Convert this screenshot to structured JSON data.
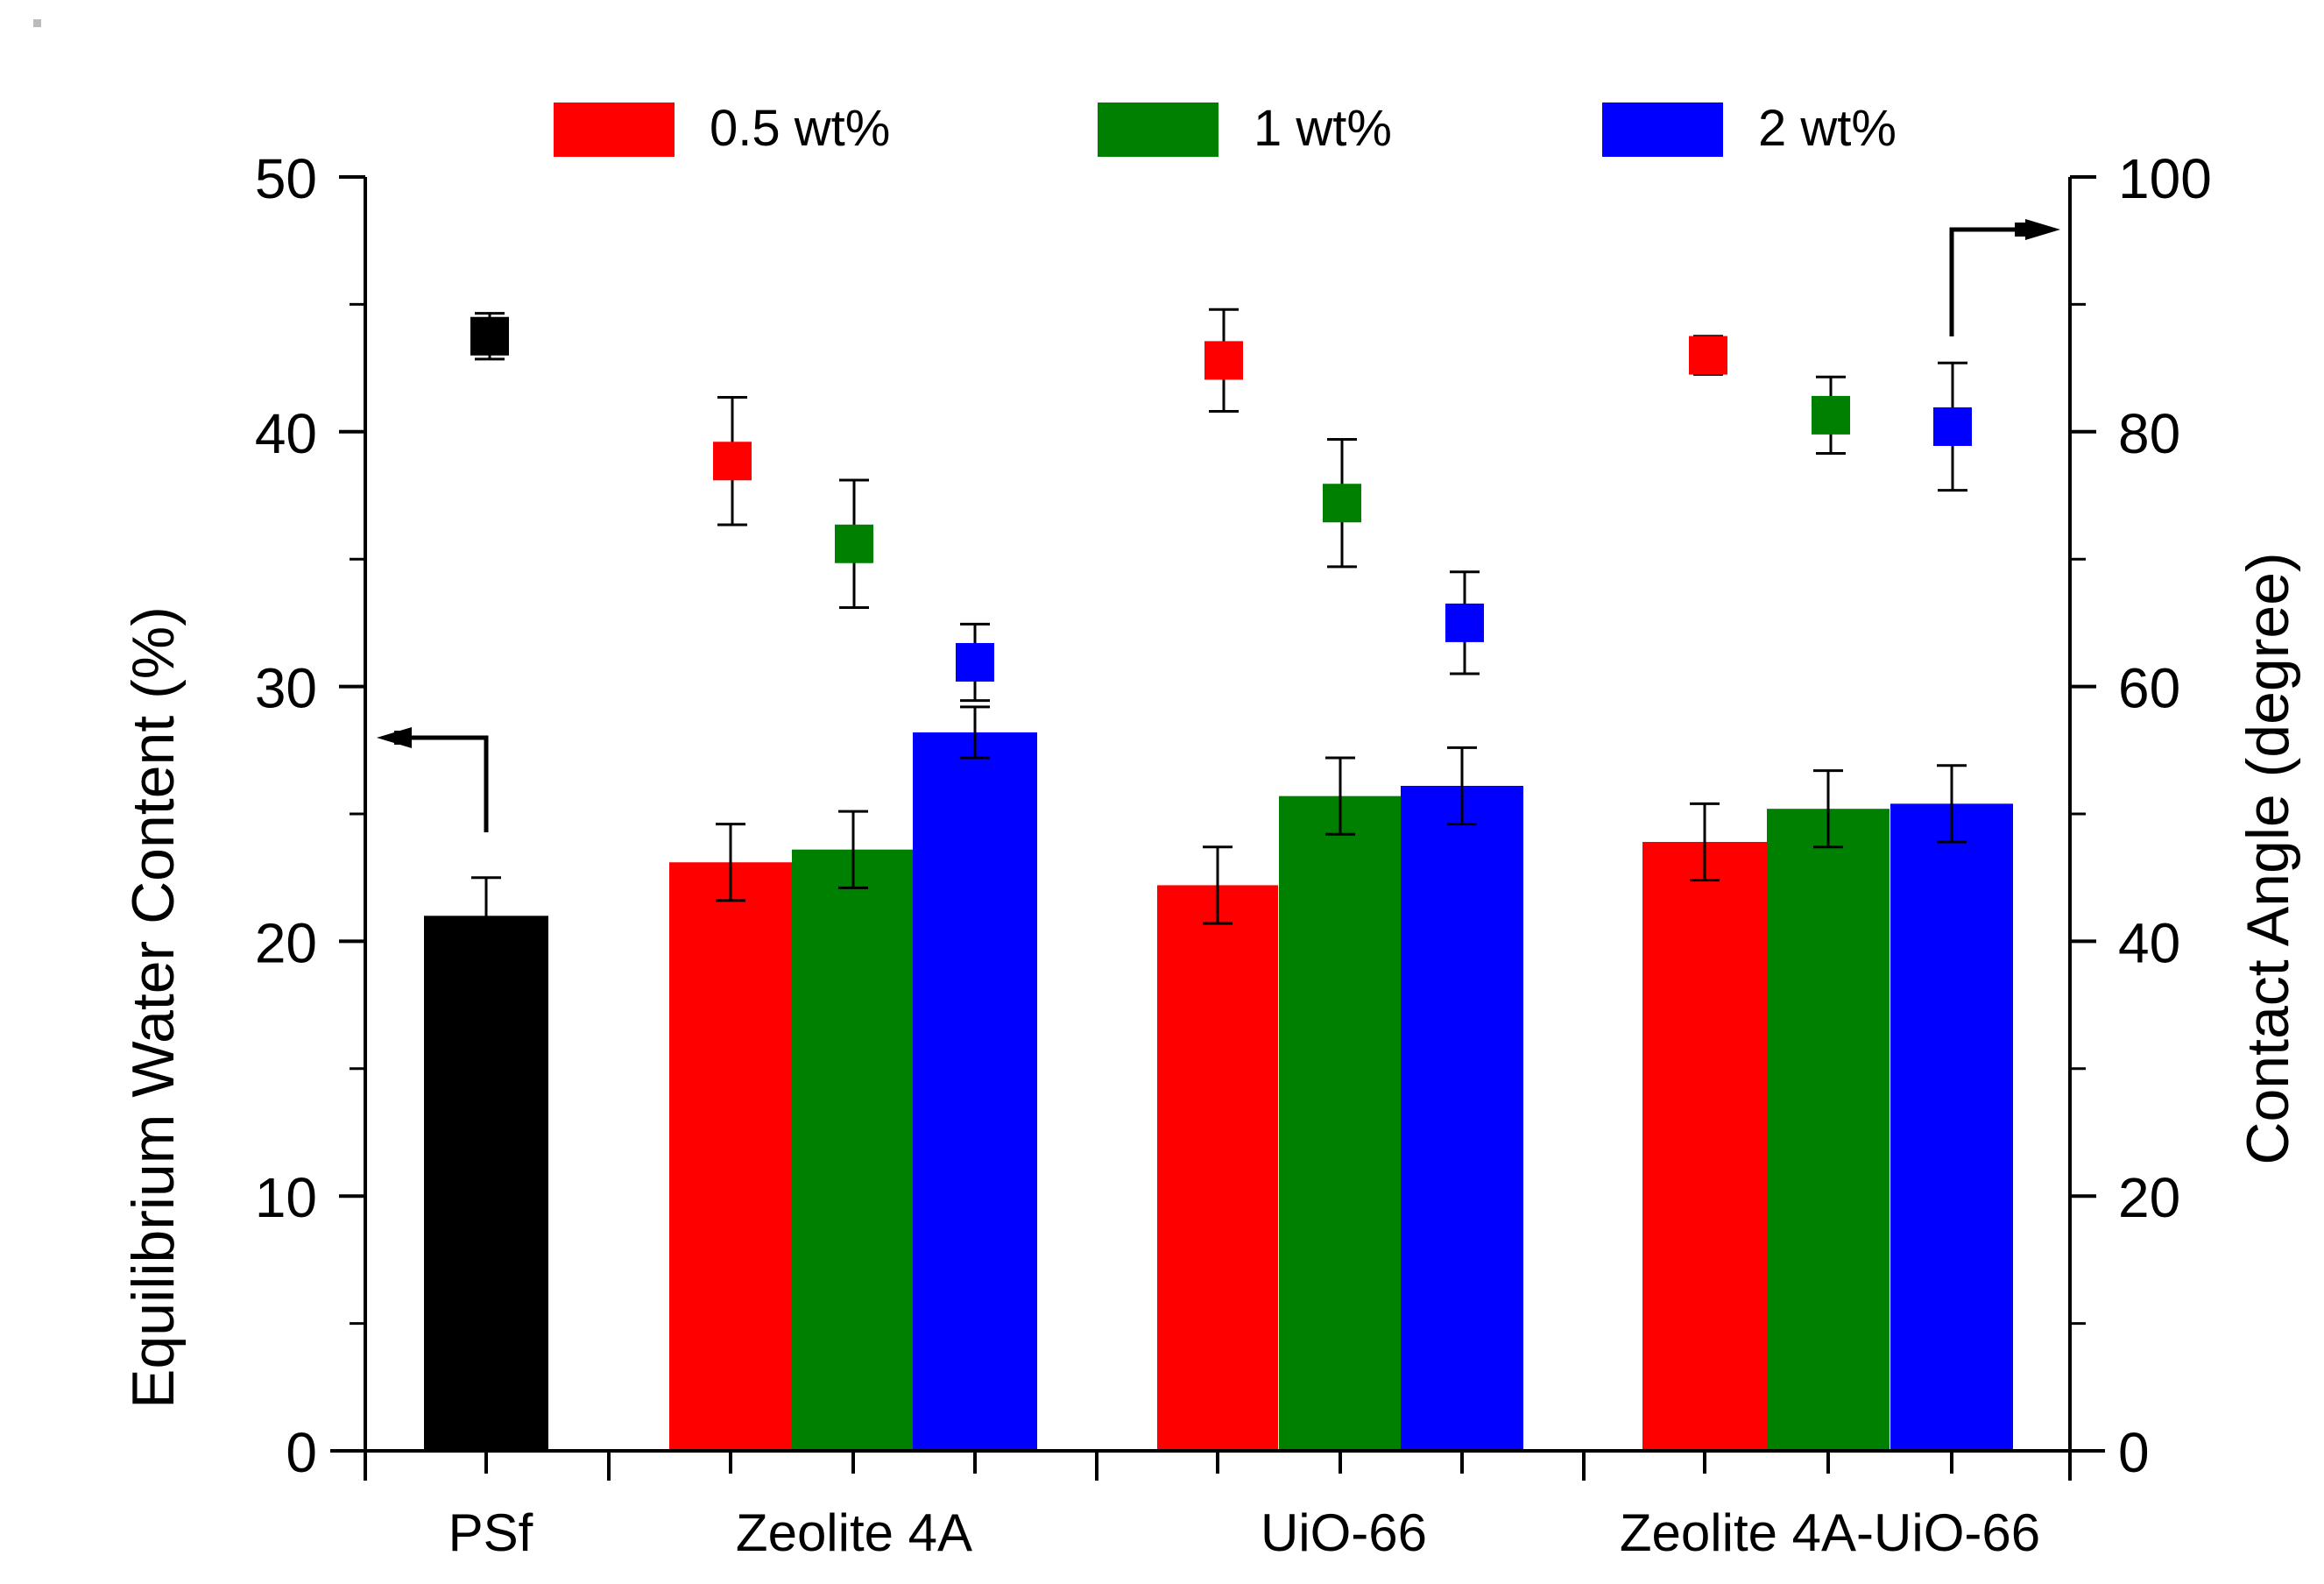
{
  "chart_data": {
    "type": "bar",
    "title": "",
    "categories": [
      "PSf",
      "Zeolite 4A",
      "UiO-66",
      "Zeolite 4A-UiO-66"
    ],
    "xlabel": "",
    "ylabel_left": "Equilibrium Water Content (%)",
    "ylabel_right": "Contact Angle (degree)",
    "ylim_left": [
      0,
      50
    ],
    "ylim_right": [
      0,
      100
    ],
    "yticks_left": [
      "0",
      "10",
      "20",
      "30",
      "40",
      "50"
    ],
    "yticks_right": [
      "0",
      "20",
      "40",
      "60",
      "80",
      "100"
    ],
    "colors": {
      "control": "#000000",
      "0.5 wt%": "#ff0000",
      "1 wt%": "#008000",
      "2 wt%": "#0000ff"
    },
    "legend": [
      {
        "label": "0.5 wt%",
        "color": "#ff0000"
      },
      {
        "label": "1 wt%",
        "color": "#008000"
      },
      {
        "label": "2 wt%",
        "color": "#0000ff"
      }
    ],
    "legend_placement": "top",
    "bars_ewc": [
      {
        "category": "PSf",
        "series": "PSf",
        "color": "#000000",
        "value": 21.0,
        "error": 1.5
      },
      {
        "category": "Zeolite 4A",
        "series": "0.5 wt%",
        "color": "#ff0000",
        "value": 23.1,
        "error": 1.5
      },
      {
        "category": "Zeolite 4A",
        "series": "1 wt%",
        "color": "#008000",
        "value": 23.6,
        "error": 1.5
      },
      {
        "category": "Zeolite 4A",
        "series": "2 wt%",
        "color": "#0000ff",
        "value": 28.2,
        "error": 1.0
      },
      {
        "category": "UiO-66",
        "series": "0.5 wt%",
        "color": "#ff0000",
        "value": 22.2,
        "error": 1.5
      },
      {
        "category": "UiO-66",
        "series": "1 wt%",
        "color": "#008000",
        "value": 25.7,
        "error": 1.5
      },
      {
        "category": "UiO-66",
        "series": "2 wt%",
        "color": "#0000ff",
        "value": 26.1,
        "error": 1.5
      },
      {
        "category": "Zeolite 4A-UiO-66",
        "series": "0.5 wt%",
        "color": "#ff0000",
        "value": 23.9,
        "error": 1.5
      },
      {
        "category": "Zeolite 4A-UiO-66",
        "series": "1 wt%",
        "color": "#008000",
        "value": 25.2,
        "error": 1.5
      },
      {
        "category": "Zeolite 4A-UiO-66",
        "series": "2 wt%",
        "color": "#0000ff",
        "value": 25.4,
        "error": 1.5
      }
    ],
    "points_contact_angle": [
      {
        "category": "PSf",
        "series": "PSf",
        "color": "#000000",
        "value": 87.5,
        "error": 1.8
      },
      {
        "category": "Zeolite 4A",
        "series": "0.5 wt%",
        "color": "#ff0000",
        "value": 77.7,
        "error": 5.0
      },
      {
        "category": "Zeolite 4A",
        "series": "1 wt%",
        "color": "#008000",
        "value": 71.2,
        "error": 5.0
      },
      {
        "category": "Zeolite 4A",
        "series": "2 wt%",
        "color": "#0000ff",
        "value": 61.9,
        "error": 3.0
      },
      {
        "category": "UiO-66",
        "series": "0.5 wt%",
        "color": "#ff0000",
        "value": 85.6,
        "error": 4.0
      },
      {
        "category": "UiO-66",
        "series": "1 wt%",
        "color": "#008000",
        "value": 74.4,
        "error": 5.0
      },
      {
        "category": "UiO-66",
        "series": "2 wt%",
        "color": "#0000ff",
        "value": 65.0,
        "error": 4.0
      },
      {
        "category": "Zeolite 4A-UiO-66",
        "series": "0.5 wt%",
        "color": "#ff0000",
        "value": 86.0,
        "error": 1.5
      },
      {
        "category": "Zeolite 4A-UiO-66",
        "series": "1 wt%",
        "color": "#008000",
        "value": 81.3,
        "error": 3.0
      },
      {
        "category": "Zeolite 4A-UiO-66",
        "series": "2 wt%",
        "color": "#0000ff",
        "value": 80.4,
        "error": 5.0
      }
    ],
    "annotations": [
      {
        "text": "arrow pointing to left axis for bars (Equilibrium Water Content)",
        "axis": "left"
      },
      {
        "text": "arrow pointing to right axis for squares (Contact Angle)",
        "axis": "right"
      }
    ]
  }
}
